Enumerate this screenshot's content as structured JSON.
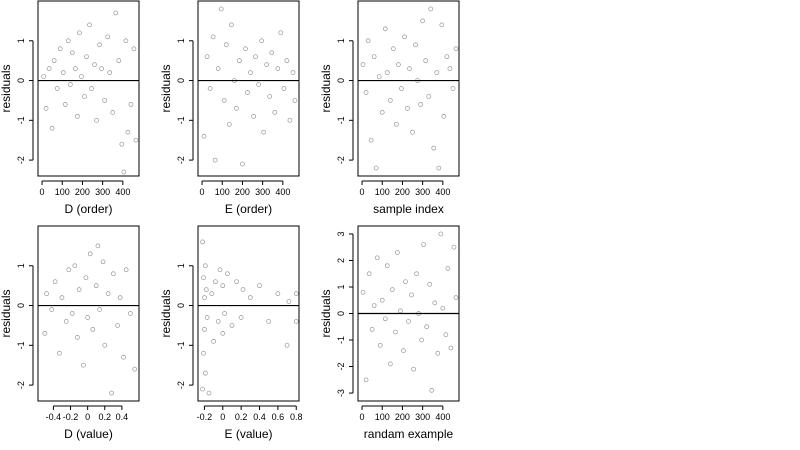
{
  "chart_data": [
    {
      "type": "scatter",
      "xlabel": "D (order)",
      "ylabel": "residuals",
      "xlim": [
        -20,
        480
      ],
      "ylim": [
        -2.4,
        2.0
      ],
      "xticks": [
        0,
        100,
        200,
        300,
        400
      ],
      "yticks": [
        -2,
        -1,
        0,
        1
      ],
      "hline": 0,
      "points": [
        [
          8,
          0.1
        ],
        [
          20,
          -0.7
        ],
        [
          35,
          0.3
        ],
        [
          50,
          -1.2
        ],
        [
          60,
          0.5
        ],
        [
          75,
          -0.2
        ],
        [
          90,
          0.8
        ],
        [
          105,
          0.2
        ],
        [
          115,
          -0.6
        ],
        [
          130,
          1.0
        ],
        [
          140,
          -0.1
        ],
        [
          150,
          0.7
        ],
        [
          165,
          0.3
        ],
        [
          175,
          -0.9
        ],
        [
          185,
          1.2
        ],
        [
          195,
          0.1
        ],
        [
          210,
          -0.4
        ],
        [
          220,
          0.6
        ],
        [
          235,
          1.4
        ],
        [
          245,
          -0.2
        ],
        [
          260,
          0.4
        ],
        [
          270,
          -1.0
        ],
        [
          285,
          0.9
        ],
        [
          295,
          0.3
        ],
        [
          310,
          -0.5
        ],
        [
          325,
          1.1
        ],
        [
          335,
          0.2
        ],
        [
          350,
          -0.8
        ],
        [
          365,
          1.7
        ],
        [
          380,
          0.5
        ],
        [
          395,
          -1.6
        ],
        [
          405,
          -2.3
        ],
        [
          415,
          1.0
        ],
        [
          425,
          -1.3
        ],
        [
          440,
          -0.6
        ],
        [
          455,
          0.8
        ],
        [
          465,
          -1.5
        ]
      ]
    },
    {
      "type": "scatter",
      "xlabel": "E (order)",
      "ylabel": "residuals",
      "xlim": [
        -20,
        480
      ],
      "ylim": [
        -2.4,
        2.0
      ],
      "xticks": [
        0,
        100,
        200,
        300,
        400
      ],
      "yticks": [
        -2,
        -1,
        0,
        1
      ],
      "hline": 0,
      "points": [
        [
          10,
          -1.4
        ],
        [
          25,
          0.6
        ],
        [
          40,
          -0.2
        ],
        [
          55,
          1.1
        ],
        [
          65,
          -2.0
        ],
        [
          80,
          0.3
        ],
        [
          95,
          1.8
        ],
        [
          110,
          -0.5
        ],
        [
          120,
          0.9
        ],
        [
          135,
          -1.1
        ],
        [
          145,
          1.4
        ],
        [
          160,
          0.0
        ],
        [
          170,
          -0.7
        ],
        [
          185,
          0.5
        ],
        [
          200,
          -2.1
        ],
        [
          215,
          0.8
        ],
        [
          225,
          -0.3
        ],
        [
          240,
          0.2
        ],
        [
          255,
          -0.9
        ],
        [
          265,
          0.6
        ],
        [
          280,
          -0.1
        ],
        [
          295,
          1.0
        ],
        [
          305,
          -1.3
        ],
        [
          320,
          0.4
        ],
        [
          335,
          -0.4
        ],
        [
          345,
          0.7
        ],
        [
          360,
          -0.8
        ],
        [
          375,
          0.3
        ],
        [
          390,
          1.2
        ],
        [
          405,
          -0.2
        ],
        [
          420,
          0.5
        ],
        [
          435,
          -1.0
        ],
        [
          450,
          0.2
        ],
        [
          460,
          -0.5
        ]
      ]
    },
    {
      "type": "scatter",
      "xlabel": "sample index",
      "ylabel": "residuals",
      "xlim": [
        -20,
        480
      ],
      "ylim": [
        -2.4,
        2.0
      ],
      "xticks": [
        0,
        100,
        200,
        300,
        400
      ],
      "yticks": [
        -2,
        -1,
        0,
        1
      ],
      "hline": 0,
      "points": [
        [
          5,
          0.4
        ],
        [
          20,
          -0.3
        ],
        [
          30,
          1.0
        ],
        [
          45,
          -1.5
        ],
        [
          60,
          0.6
        ],
        [
          70,
          -2.2
        ],
        [
          85,
          0.1
        ],
        [
          100,
          -0.8
        ],
        [
          115,
          1.3
        ],
        [
          125,
          0.2
        ],
        [
          140,
          -0.5
        ],
        [
          155,
          0.8
        ],
        [
          170,
          -1.1
        ],
        [
          180,
          0.4
        ],
        [
          195,
          -0.2
        ],
        [
          210,
          1.1
        ],
        [
          225,
          -0.7
        ],
        [
          235,
          0.3
        ],
        [
          250,
          -1.3
        ],
        [
          265,
          0.9
        ],
        [
          275,
          0.0
        ],
        [
          290,
          -0.6
        ],
        [
          300,
          1.5
        ],
        [
          315,
          0.5
        ],
        [
          330,
          -0.4
        ],
        [
          340,
          1.8
        ],
        [
          355,
          -1.7
        ],
        [
          370,
          0.2
        ],
        [
          380,
          -2.2
        ],
        [
          395,
          1.4
        ],
        [
          405,
          -0.9
        ],
        [
          420,
          0.6
        ],
        [
          435,
          0.3
        ],
        [
          450,
          -0.2
        ],
        [
          465,
          0.8
        ]
      ]
    },
    {
      "type": "scatter",
      "xlabel": "D (value)",
      "ylabel": "residuals",
      "xlim": [
        -0.58,
        0.6
      ],
      "ylim": [
        -2.4,
        2.0
      ],
      "xticks": [
        -0.4,
        -0.2,
        0.0,
        0.2,
        0.4
      ],
      "yticks": [
        -2,
        -1,
        0,
        1
      ],
      "hline": 0,
      "points": [
        [
          -0.5,
          -0.7
        ],
        [
          -0.48,
          0.3
        ],
        [
          -0.42,
          -0.1
        ],
        [
          -0.38,
          0.6
        ],
        [
          -0.33,
          -1.2
        ],
        [
          -0.3,
          0.2
        ],
        [
          -0.25,
          -0.4
        ],
        [
          -0.22,
          0.9
        ],
        [
          -0.18,
          -0.2
        ],
        [
          -0.15,
          1.0
        ],
        [
          -0.12,
          -0.8
        ],
        [
          -0.1,
          0.4
        ],
        [
          -0.05,
          -1.5
        ],
        [
          -0.02,
          0.7
        ],
        [
          0.0,
          -0.3
        ],
        [
          0.03,
          1.3
        ],
        [
          0.06,
          -0.6
        ],
        [
          0.1,
          0.5
        ],
        [
          0.12,
          1.5
        ],
        [
          0.14,
          -0.1
        ],
        [
          0.18,
          1.1
        ],
        [
          0.2,
          -1.0
        ],
        [
          0.24,
          0.3
        ],
        [
          0.28,
          -2.2
        ],
        [
          0.3,
          0.8
        ],
        [
          0.35,
          -0.5
        ],
        [
          0.38,
          0.2
        ],
        [
          0.42,
          -1.3
        ],
        [
          0.45,
          0.9
        ],
        [
          0.5,
          -0.2
        ],
        [
          0.55,
          -1.6
        ]
      ]
    },
    {
      "type": "scatter",
      "xlabel": "E (value)",
      "ylabel": "residuals",
      "xlim": [
        -0.27,
        0.83
      ],
      "ylim": [
        -2.4,
        2.0
      ],
      "xticks": [
        -0.2,
        0.0,
        0.2,
        0.4,
        0.6,
        0.8
      ],
      "yticks": [
        -2,
        -1,
        0,
        1
      ],
      "hline": 0,
      "points": [
        [
          -0.22,
          1.6
        ],
        [
          -0.22,
          -2.1
        ],
        [
          -0.21,
          0.7
        ],
        [
          -0.21,
          -1.2
        ],
        [
          -0.2,
          0.2
        ],
        [
          -0.2,
          -0.6
        ],
        [
          -0.19,
          1.0
        ],
        [
          -0.19,
          -1.7
        ],
        [
          -0.18,
          0.4
        ],
        [
          -0.17,
          -0.3
        ],
        [
          -0.15,
          -2.2
        ],
        [
          -0.12,
          0.3
        ],
        [
          -0.1,
          -0.9
        ],
        [
          -0.08,
          0.6
        ],
        [
          -0.05,
          -0.4
        ],
        [
          -0.03,
          0.9
        ],
        [
          0.0,
          -0.7
        ],
        [
          0.0,
          0.5
        ],
        [
          0.02,
          -0.2
        ],
        [
          0.05,
          0.8
        ],
        [
          0.1,
          -0.5
        ],
        [
          0.15,
          0.6
        ],
        [
          0.2,
          -0.3
        ],
        [
          0.22,
          0.4
        ],
        [
          0.3,
          0.2
        ],
        [
          0.4,
          0.5
        ],
        [
          0.5,
          -0.4
        ],
        [
          0.6,
          0.3
        ],
        [
          0.7,
          -1.0
        ],
        [
          0.72,
          0.1
        ],
        [
          0.8,
          -0.4
        ],
        [
          0.8,
          0.3
        ]
      ]
    },
    {
      "type": "scatter",
      "xlabel": "randam example",
      "ylabel": "residuals",
      "xlim": [
        -20,
        480
      ],
      "ylim": [
        -3.3,
        3.3
      ],
      "xticks": [
        0,
        100,
        200,
        300,
        400
      ],
      "yticks": [
        -3,
        -2,
        -1,
        0,
        1,
        2,
        3
      ],
      "hline": 0,
      "points": [
        [
          5,
          0.8
        ],
        [
          20,
          -2.5
        ],
        [
          35,
          1.5
        ],
        [
          50,
          -0.6
        ],
        [
          60,
          0.3
        ],
        [
          75,
          2.1
        ],
        [
          90,
          -1.2
        ],
        [
          100,
          0.5
        ],
        [
          115,
          -0.2
        ],
        [
          125,
          1.8
        ],
        [
          140,
          -1.9
        ],
        [
          150,
          0.9
        ],
        [
          165,
          -0.7
        ],
        [
          175,
          2.3
        ],
        [
          190,
          0.1
        ],
        [
          205,
          -1.4
        ],
        [
          215,
          1.2
        ],
        [
          230,
          -0.3
        ],
        [
          245,
          0.7
        ],
        [
          255,
          -2.1
        ],
        [
          270,
          1.5
        ],
        [
          280,
          0.0
        ],
        [
          295,
          -1.0
        ],
        [
          305,
          2.6
        ],
        [
          320,
          -0.5
        ],
        [
          335,
          1.1
        ],
        [
          345,
          -2.9
        ],
        [
          360,
          0.4
        ],
        [
          375,
          -1.5
        ],
        [
          390,
          3.0
        ],
        [
          400,
          0.2
        ],
        [
          415,
          -0.8
        ],
        [
          425,
          1.7
        ],
        [
          440,
          -1.3
        ],
        [
          455,
          2.5
        ],
        [
          465,
          0.6
        ]
      ]
    }
  ]
}
